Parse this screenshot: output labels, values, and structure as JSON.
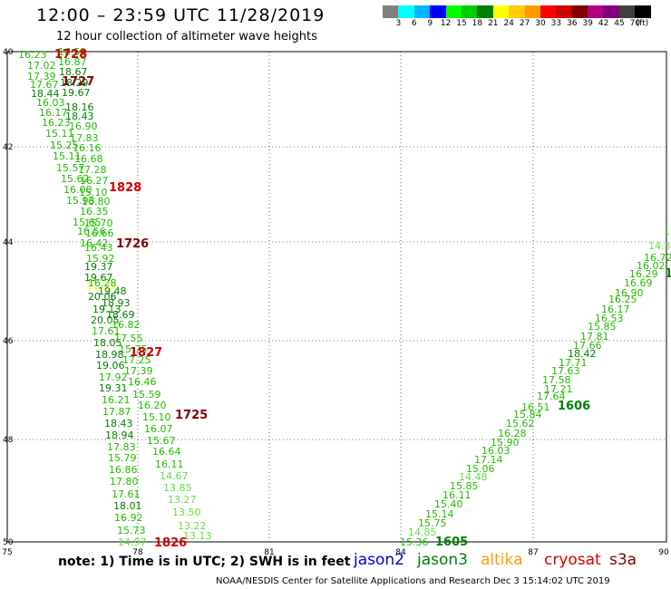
{
  "header": {
    "title": "12:00 – 23:59 UTC 11/28/2019",
    "subtitle": "12 hour collection of altimeter wave heights"
  },
  "legend": {
    "colors": [
      "#808080",
      "#00ffff",
      "#00b4ff",
      "#0000ff",
      "#00ff00",
      "#00cc00",
      "#008000",
      "#ffff00",
      "#ffcc00",
      "#ff9900",
      "#ff0000",
      "#cc0000",
      "#800000",
      "#b00080",
      "#800080",
      "#404040",
      "#000000"
    ],
    "labels": [
      "3",
      "6",
      "9",
      "12",
      "15",
      "18",
      "21",
      "24",
      "27",
      "30",
      "33",
      "36",
      "39",
      "42",
      "45",
      "70",
      "(ft)"
    ]
  },
  "axes": {
    "lat_labels": [
      "40",
      "42",
      "44",
      "46",
      "48",
      "50"
    ],
    "lon_labels": [
      "75",
      "78",
      "81",
      "84",
      "87",
      "90"
    ]
  },
  "track_west": {
    "values": [
      "16.23",
      "17.02",
      "17.39",
      "17.67",
      "18.44",
      "16.03",
      "16.17",
      "16.23",
      "15.11",
      "15.25",
      "15.11",
      "15.57",
      "15.62",
      "16.00",
      "15.93",
      "15.65",
      "16.56",
      "16.42",
      "19.37",
      "19.67",
      "20.06",
      "21.13",
      "19.13",
      "20.05",
      "17.61",
      "18.05",
      "18.98",
      "19.06",
      "17.92",
      "19.31",
      "16.21",
      "17.87",
      "18.43",
      "18.94",
      "17.83",
      "15.79",
      "16.86",
      "17.80",
      "17.61",
      "18.01",
      "16.92",
      "15.73",
      "14.97",
      "16.59",
      "16.87",
      "18.67",
      "18.29",
      "19.67",
      "18.16",
      "18.43",
      "16.90",
      "17.83",
      "16.16",
      "16.68",
      "17.28",
      "16.27",
      "15.10",
      "16.80",
      "16.35",
      "15.70",
      "16.66",
      "16.43",
      "15.92",
      "16.28",
      "19.48",
      "18.93",
      "18.69",
      "16.82",
      "17.55",
      "15.75",
      "17.25",
      "17.39",
      "16.46",
      "15.59",
      "16.20",
      "15.10",
      "16.07",
      "15.67",
      "16.64",
      "16.11",
      "14.67",
      "13.85",
      "13.27",
      "13.50",
      "13.22",
      "13.13"
    ],
    "time_labels": [
      "1728",
      "1727",
      "1828",
      "1726",
      "1827",
      "1725",
      "1826"
    ]
  },
  "track_east": {
    "values": [
      "15.36",
      "14.85",
      "15.75",
      "15.14",
      "15.40",
      "16.11",
      "15.85",
      "14.48",
      "15.06",
      "17.14",
      "16.03",
      "15.90",
      "16.28",
      "15.62",
      "15.84",
      "16.51",
      "17.64",
      "17.21",
      "17.58",
      "17.63",
      "17.71",
      "18.42",
      "17.66",
      "17.81",
      "15.85",
      "16.53",
      "16.17",
      "16.25",
      "16.90",
      "16.69",
      "16.29",
      "16.02",
      "16.72",
      "14.3",
      "1"
    ],
    "time_labels": [
      "1605",
      "1606",
      "1"
    ]
  },
  "footer": {
    "note": "note:  1) Time is in UTC;  2) SWH is in feet",
    "satellites": [
      {
        "name": "jason2",
        "color": "#0000cc"
      },
      {
        "name": "jason3",
        "color": "#008000"
      },
      {
        "name": "altika",
        "color": "#ff9900"
      },
      {
        "name": "cryosat",
        "color": "#cc0000"
      },
      {
        "name": "s3a",
        "color": "#800000"
      }
    ],
    "credit": "NOAA/NESDIS Center for Satellite Applications and Research    Dec  3 15:14:02 UTC 2019"
  }
}
